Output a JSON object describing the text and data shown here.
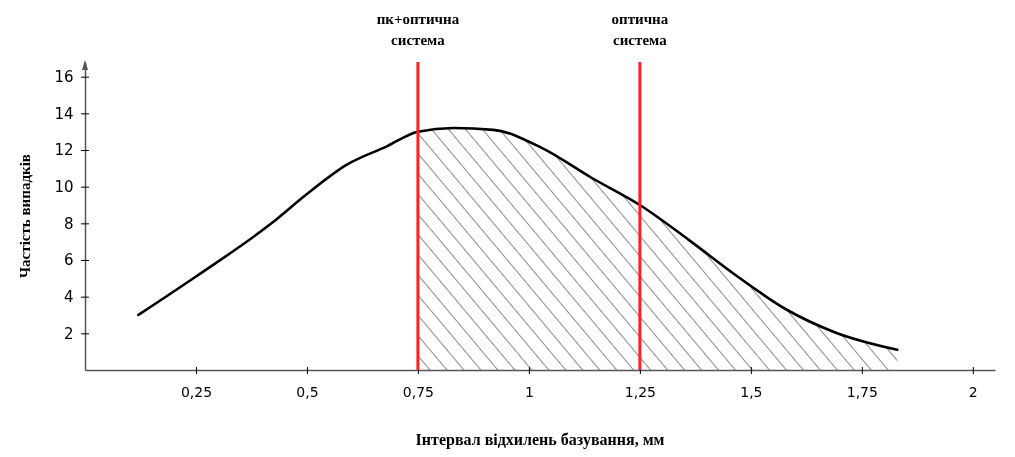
{
  "chart_data": {
    "type": "line",
    "xlabel": "Інтервал відхилень базування, мм",
    "ylabel": "Частість випадків",
    "xlim": [
      0,
      2.05
    ],
    "ylim": [
      0,
      16.8
    ],
    "xticks": [
      {
        "value": 0.25,
        "label": "0,25"
      },
      {
        "value": 0.5,
        "label": "0,5"
      },
      {
        "value": 0.75,
        "label": "0,75"
      },
      1,
      {
        "value": 1.25,
        "label": "1,25"
      },
      {
        "value": 1.5,
        "label": "1,5"
      },
      {
        "value": 1.75,
        "label": "1,75"
      },
      2
    ],
    "yticks": [
      2,
      4,
      6,
      8,
      10,
      12,
      14,
      16
    ],
    "grid": false,
    "marker": "none",
    "line_style": "solid",
    "series": [
      {
        "type": "area",
        "color": "#000000",
        "x": [
          0.75,
          0.83,
          0.92,
          1.03,
          1.14,
          1.25,
          1.36,
          1.47,
          1.58,
          1.69,
          1.83
        ],
        "values": [
          13.0,
          13.2,
          13.1,
          12.1,
          10.5,
          9.0,
          7.1,
          5.1,
          3.3,
          2.05,
          1.1
        ]
      },
      {
        "color": "#000000",
        "x": [
          0.12,
          0.25,
          0.42,
          0.5,
          0.59,
          0.68,
          0.75,
          0.83,
          0.92,
          1.03,
          1.14,
          1.25,
          1.36,
          1.47,
          1.58,
          1.69,
          1.83
        ],
        "values": [
          3.0,
          5.1,
          8.0,
          9.6,
          11.2,
          12.2,
          13.0,
          13.2,
          13.1,
          12.1,
          10.5,
          9.0,
          7.1,
          5.1,
          3.3,
          2.05,
          1.1
        ]
      }
    ],
    "ref_lines": [
      {
        "axis": "x",
        "value": 0.75,
        "label": "пк+оптична система",
        "color": "#ff2020"
      },
      {
        "axis": "x",
        "value": 1.25,
        "label": "оптична система",
        "color": "#ff2020"
      }
    ]
  }
}
